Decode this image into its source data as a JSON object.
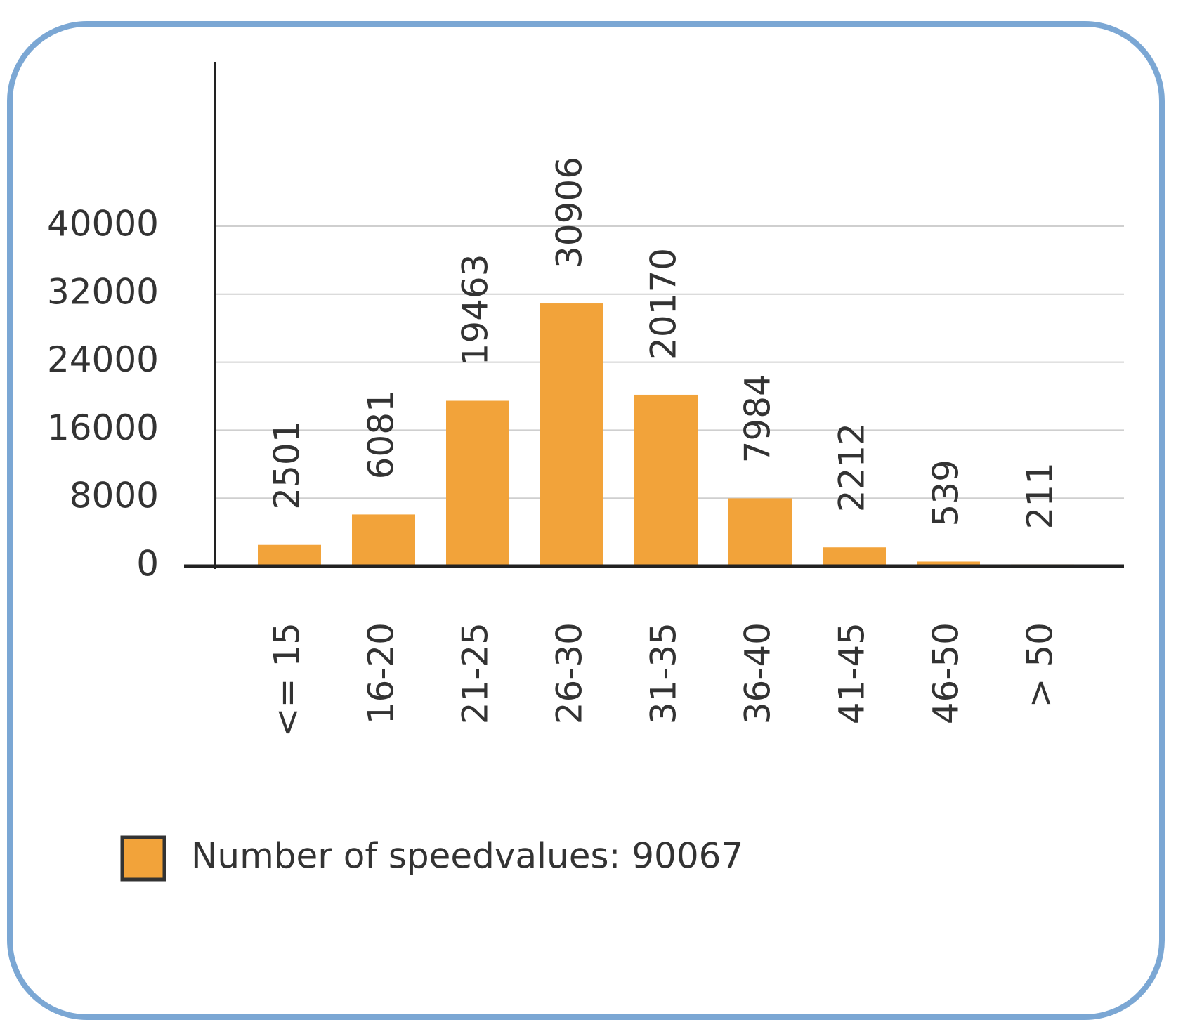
{
  "chart_data": {
    "type": "bar",
    "categories": [
      "<= 15",
      "16-20",
      "21-25",
      "26-30",
      "31-35",
      "36-40",
      "41-45",
      "46-50",
      "> 50"
    ],
    "series": [
      {
        "name": "Number of speedvalues: 90067",
        "color": "#f2a33a",
        "values": [
          2501,
          6081,
          19463,
          30906,
          20170,
          7984,
          2212,
          539,
          211
        ]
      }
    ],
    "ylim": [
      0,
      60000
    ],
    "yticks": [
      0,
      8000,
      16000,
      24000,
      32000,
      40000
    ],
    "grid": true,
    "legend": "bottom"
  }
}
